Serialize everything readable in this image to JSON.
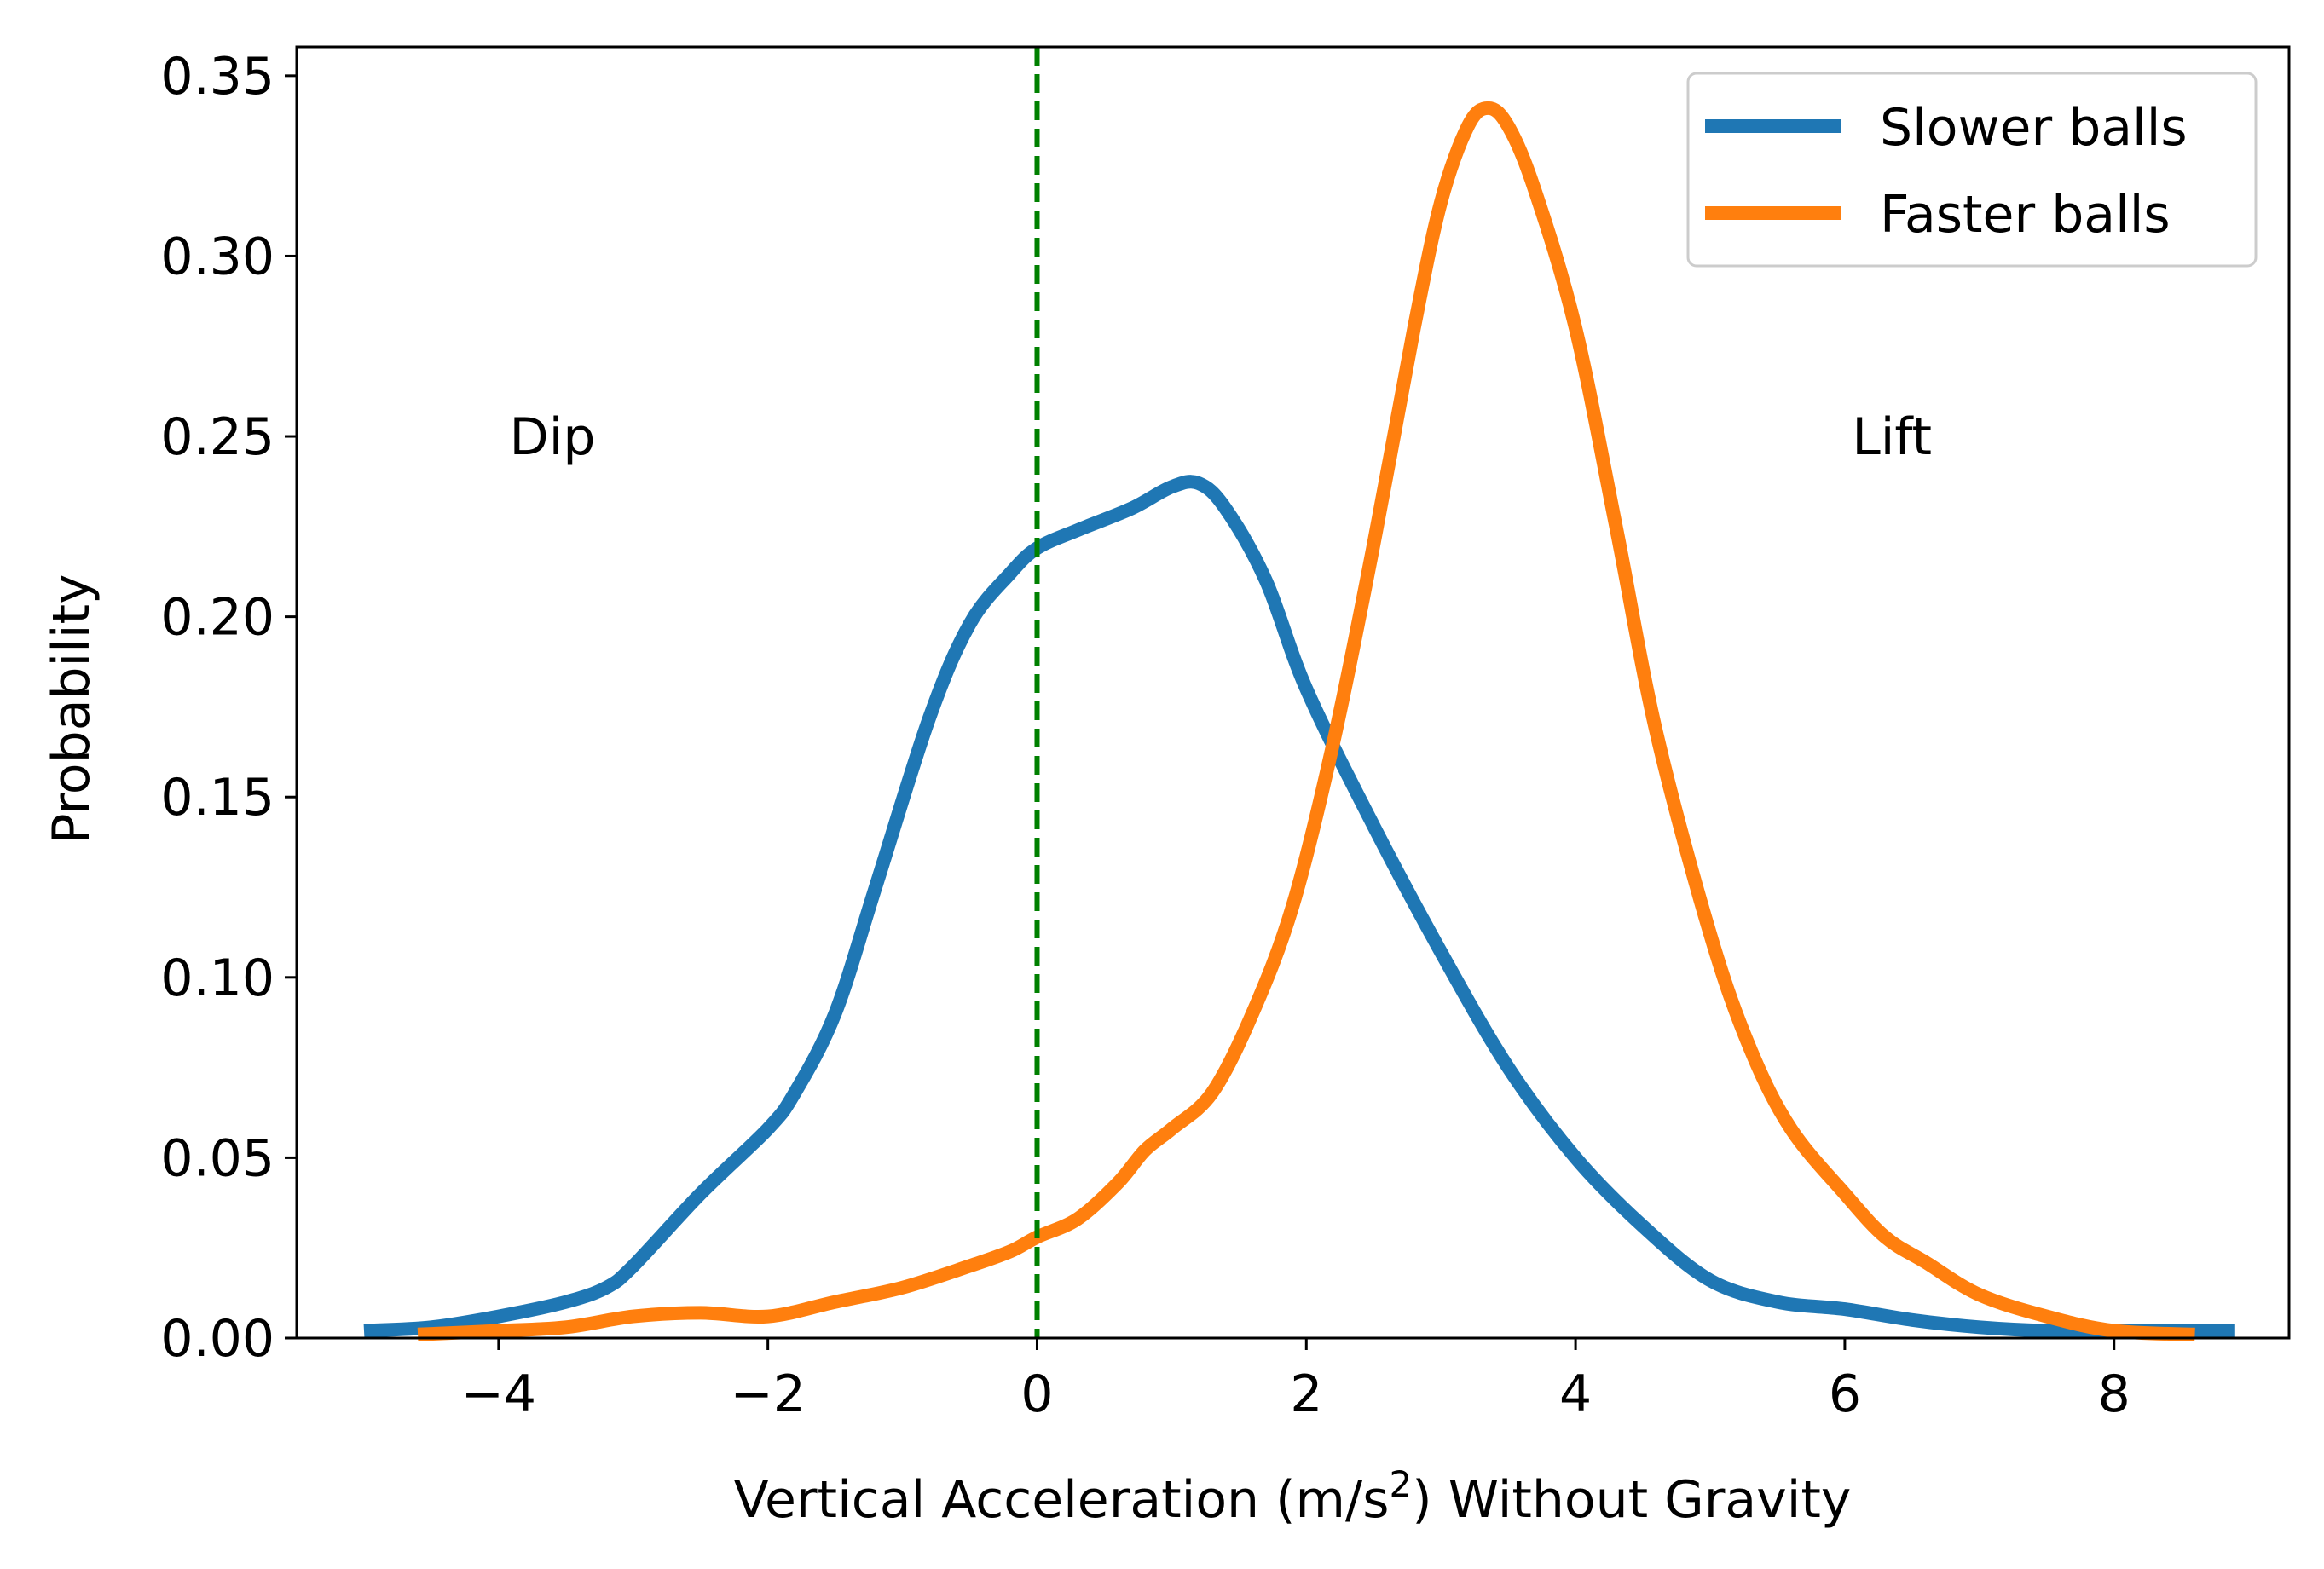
{
  "chart_data": {
    "type": "line",
    "title": "",
    "xlabel": {
      "before": "Vertical Acceleration (m/s",
      "sup": "2",
      "after": ") Without Gravity"
    },
    "ylabel": "Probability",
    "xlim": [
      -5.5,
      9.3
    ],
    "ylim": [
      0,
      0.358
    ],
    "xticks": [
      -4,
      -2,
      0,
      2,
      4,
      6,
      8
    ],
    "xtick_labels": [
      "−4",
      "−2",
      "0",
      "2",
      "4",
      "6",
      "8"
    ],
    "yticks": [
      0,
      0.05,
      0.1,
      0.15,
      0.2,
      0.25,
      0.3,
      0.35
    ],
    "ytick_labels": [
      "0.00",
      "0.05",
      "0.10",
      "0.15",
      "0.20",
      "0.25",
      "0.30",
      "0.35"
    ],
    "grid": false,
    "legend_position": "top-right",
    "reference_line": {
      "x": 0,
      "color": "#008000",
      "style": "dashed"
    },
    "annotations": [
      {
        "text": "Dip",
        "x": -3.6,
        "y": 0.25
      },
      {
        "text": "Lift",
        "x": 6.35,
        "y": 0.25
      }
    ],
    "series": [
      {
        "name": "Slower balls",
        "color": "#1f77b4",
        "points": [
          [
            -5.0,
            0.002
          ],
          [
            -4.5,
            0.003
          ],
          [
            -4.0,
            0.006
          ],
          [
            -3.5,
            0.01
          ],
          [
            -3.2,
            0.014
          ],
          [
            -3.0,
            0.02
          ],
          [
            -2.5,
            0.04
          ],
          [
            -2.0,
            0.058
          ],
          [
            -1.8,
            0.068
          ],
          [
            -1.5,
            0.09
          ],
          [
            -1.2,
            0.125
          ],
          [
            -0.8,
            0.172
          ],
          [
            -0.5,
            0.198
          ],
          [
            -0.2,
            0.212
          ],
          [
            0.0,
            0.219
          ],
          [
            0.3,
            0.224
          ],
          [
            0.7,
            0.23
          ],
          [
            1.0,
            0.236
          ],
          [
            1.2,
            0.237
          ],
          [
            1.4,
            0.23
          ],
          [
            1.7,
            0.21
          ],
          [
            2.0,
            0.18
          ],
          [
            2.5,
            0.142
          ],
          [
            3.0,
            0.107
          ],
          [
            3.5,
            0.075
          ],
          [
            4.0,
            0.05
          ],
          [
            4.5,
            0.031
          ],
          [
            5.0,
            0.016
          ],
          [
            5.5,
            0.01
          ],
          [
            6.0,
            0.008
          ],
          [
            6.5,
            0.005
          ],
          [
            7.0,
            0.003
          ],
          [
            7.5,
            0.002
          ],
          [
            8.0,
            0.002
          ],
          [
            8.9,
            0.002
          ]
        ]
      },
      {
        "name": "Faster balls",
        "color": "#ff7f0e",
        "points": [
          [
            -4.6,
            0.001
          ],
          [
            -4.0,
            0.002
          ],
          [
            -3.5,
            0.003
          ],
          [
            -3.0,
            0.006
          ],
          [
            -2.5,
            0.007
          ],
          [
            -2.0,
            0.006
          ],
          [
            -1.5,
            0.01
          ],
          [
            -1.0,
            0.014
          ],
          [
            -0.5,
            0.02
          ],
          [
            -0.2,
            0.024
          ],
          [
            0.0,
            0.028
          ],
          [
            0.3,
            0.033
          ],
          [
            0.6,
            0.043
          ],
          [
            0.8,
            0.052
          ],
          [
            1.0,
            0.058
          ],
          [
            1.3,
            0.068
          ],
          [
            1.6,
            0.09
          ],
          [
            1.9,
            0.12
          ],
          [
            2.2,
            0.165
          ],
          [
            2.5,
            0.22
          ],
          [
            2.8,
            0.28
          ],
          [
            3.0,
            0.315
          ],
          [
            3.2,
            0.336
          ],
          [
            3.35,
            0.341
          ],
          [
            3.5,
            0.336
          ],
          [
            3.7,
            0.318
          ],
          [
            4.0,
            0.28
          ],
          [
            4.3,
            0.225
          ],
          [
            4.6,
            0.168
          ],
          [
            5.0,
            0.112
          ],
          [
            5.3,
            0.08
          ],
          [
            5.6,
            0.058
          ],
          [
            6.0,
            0.04
          ],
          [
            6.3,
            0.028
          ],
          [
            6.6,
            0.021
          ],
          [
            7.0,
            0.012
          ],
          [
            7.5,
            0.006
          ],
          [
            8.0,
            0.002
          ],
          [
            8.6,
            0.001
          ]
        ]
      }
    ]
  }
}
